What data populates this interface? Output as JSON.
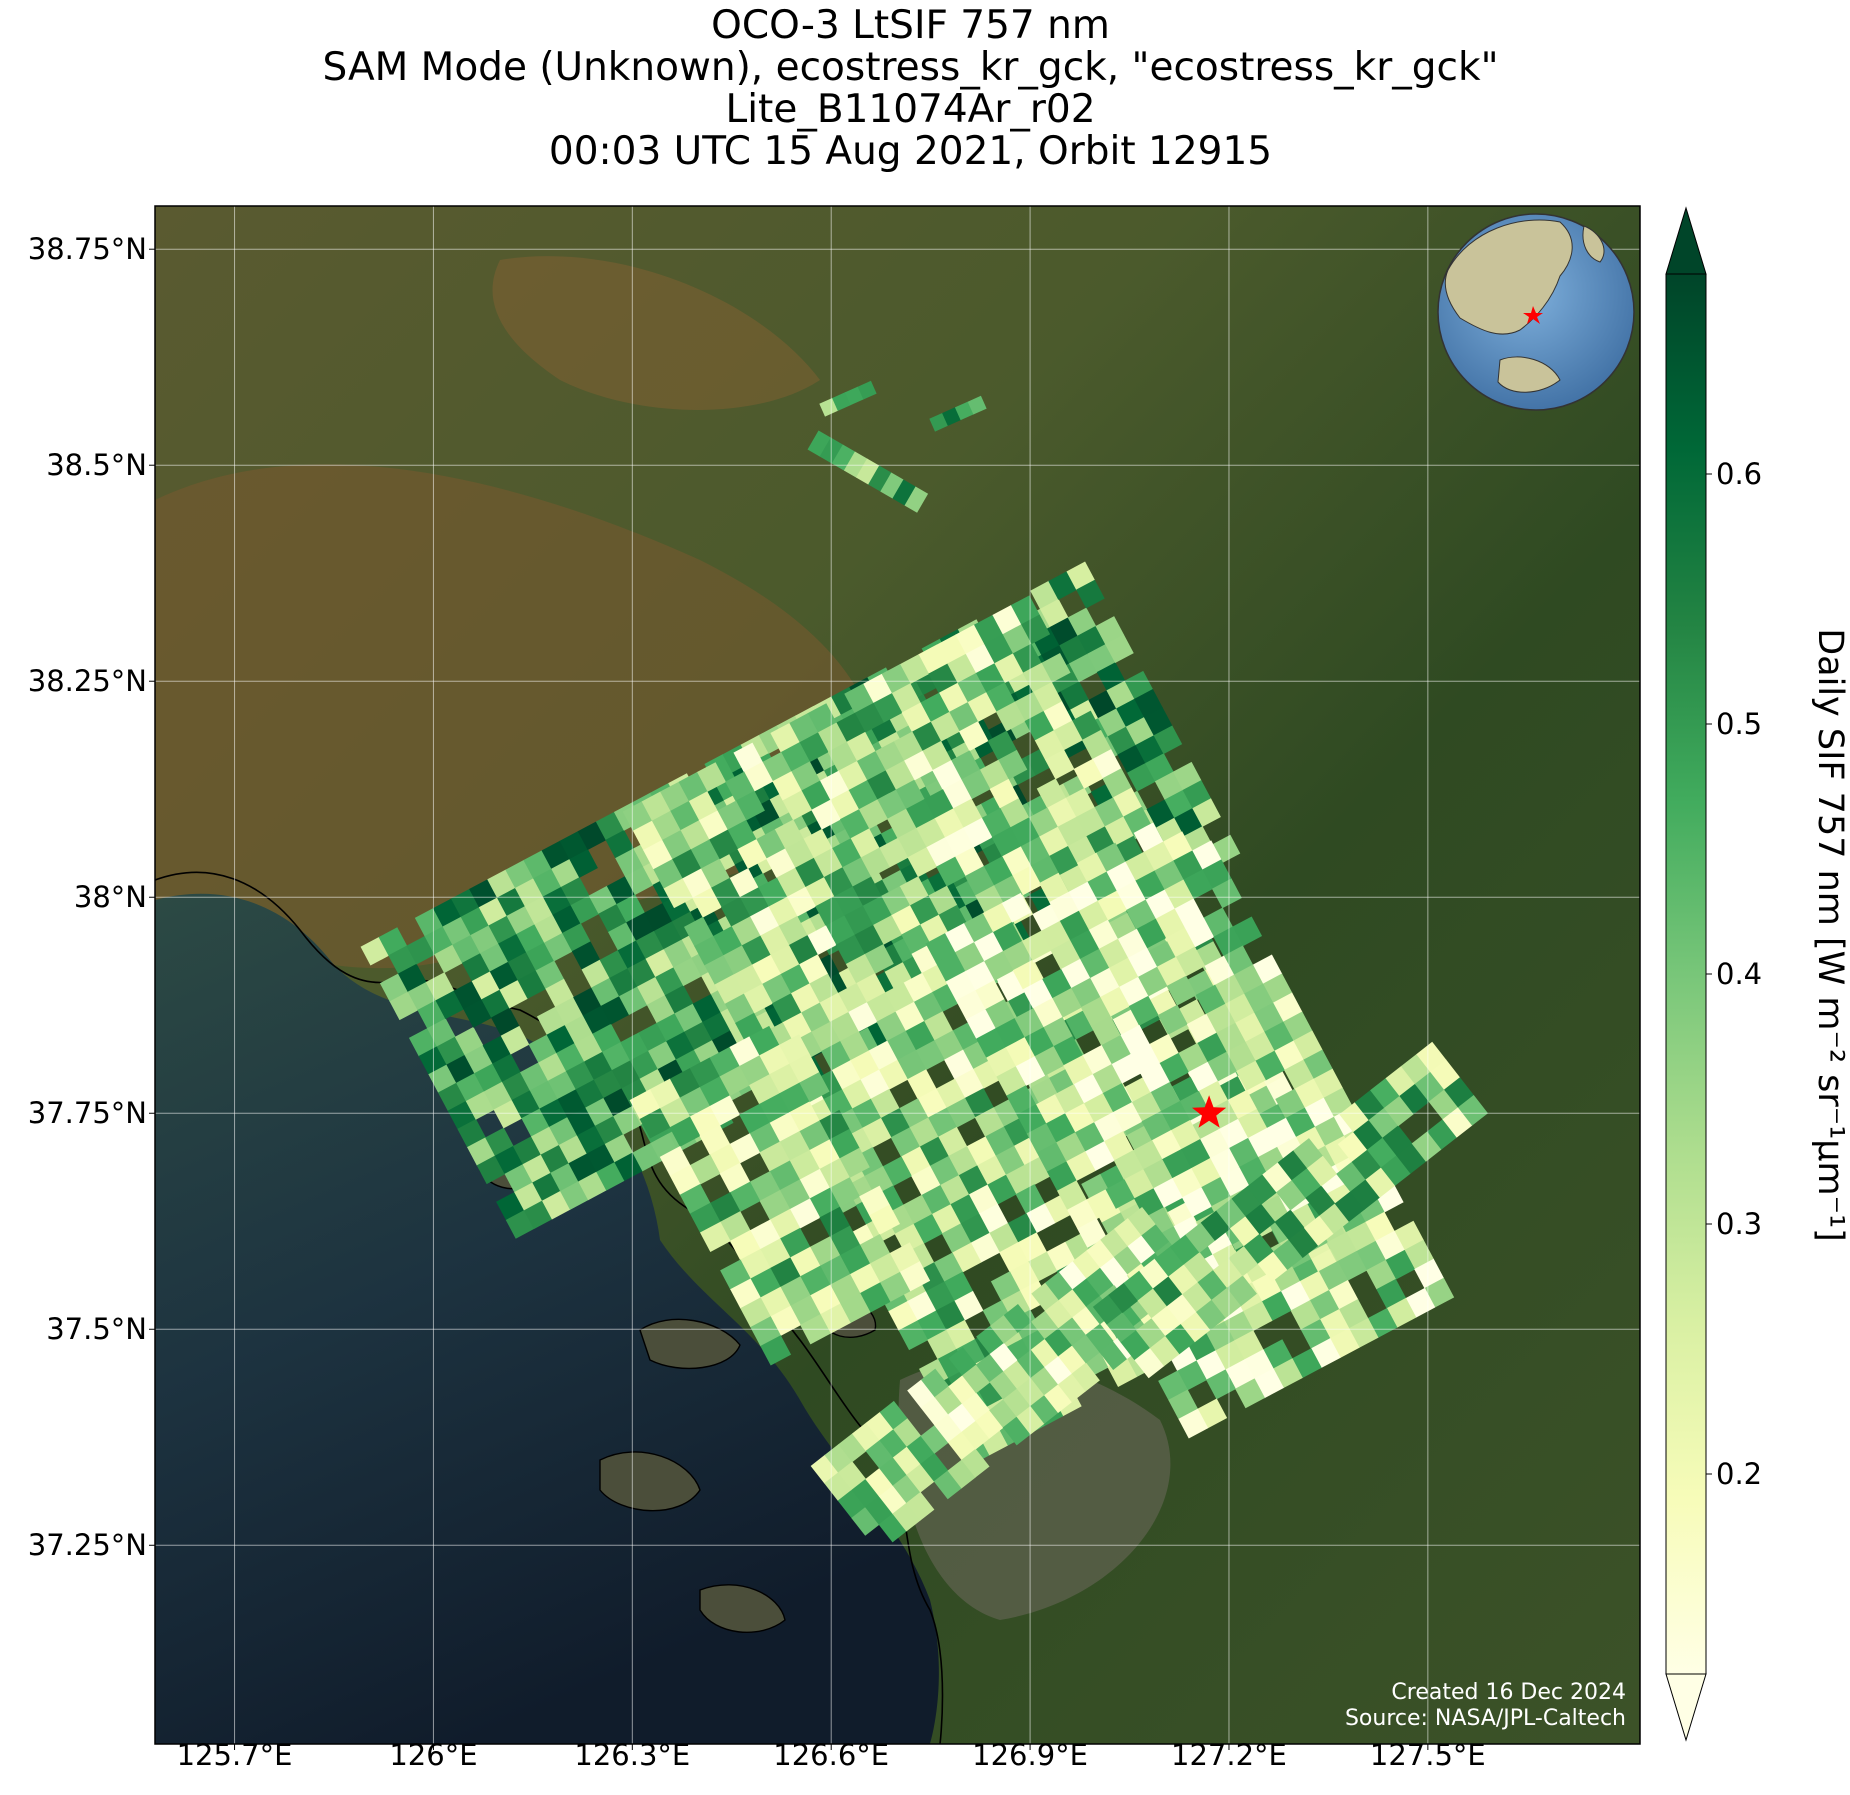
{
  "title": {
    "line1": "OCO-3 LtSIF 757 nm",
    "line2": "SAM Mode (Unknown), ecostress_kr_gck, \"ecostress_kr_gck\"",
    "line3": "Lite_B11074Ar_r02",
    "line4": "00:03 UTC 15 Aug 2021, Orbit 12915"
  },
  "map": {
    "lon_range": [
      125.58,
      127.82
    ],
    "lat_range": [
      37.02,
      38.8
    ],
    "lat_ticks": [
      {
        "value": 38.75,
        "label": "38.75°N"
      },
      {
        "value": 38.5,
        "label": "38.5°N"
      },
      {
        "value": 38.25,
        "label": "38.25°N"
      },
      {
        "value": 38.0,
        "label": "38°N"
      },
      {
        "value": 37.75,
        "label": "37.75°N"
      },
      {
        "value": 37.5,
        "label": "37.5°N"
      },
      {
        "value": 37.25,
        "label": "37.25°N"
      }
    ],
    "lon_ticks": [
      {
        "value": 125.7,
        "label": "125.7°E"
      },
      {
        "value": 126.0,
        "label": "126°E"
      },
      {
        "value": 126.3,
        "label": "126.3°E"
      },
      {
        "value": 126.6,
        "label": "126.6°E"
      },
      {
        "value": 126.9,
        "label": "126.9°E"
      },
      {
        "value": 127.2,
        "label": "127.2°E"
      },
      {
        "value": 127.5,
        "label": "127.5°E"
      }
    ],
    "target": {
      "lon": 127.17,
      "lat": 37.75,
      "color": "#ff0000",
      "marker": "star"
    },
    "inset_globe": {
      "marker_color": "#ff0000",
      "ocean_color": "#5b8fc4",
      "land_color": "#c9c39a"
    },
    "background": "satellite-imagery",
    "credit_line1": "Created 16 Dec 2024",
    "credit_line2": "Source: NASA/JPL-Caltech"
  },
  "colorbar": {
    "label": "Daily SIF 757 nm [W m⁻² sr⁻¹μm⁻¹]",
    "range": [
      0.12,
      0.68
    ],
    "ticks": [
      {
        "value": 0.2,
        "label": "0.2"
      },
      {
        "value": 0.3,
        "label": "0.3"
      },
      {
        "value": 0.4,
        "label": "0.4"
      },
      {
        "value": 0.5,
        "label": "0.5"
      },
      {
        "value": 0.6,
        "label": "0.6"
      }
    ],
    "colormap": "YlGn",
    "extend": "both",
    "stops": [
      "#ffffe5",
      "#f7fcb9",
      "#d9f0a3",
      "#addd8e",
      "#78c679",
      "#41ab5d",
      "#238443",
      "#006837",
      "#004529"
    ]
  }
}
